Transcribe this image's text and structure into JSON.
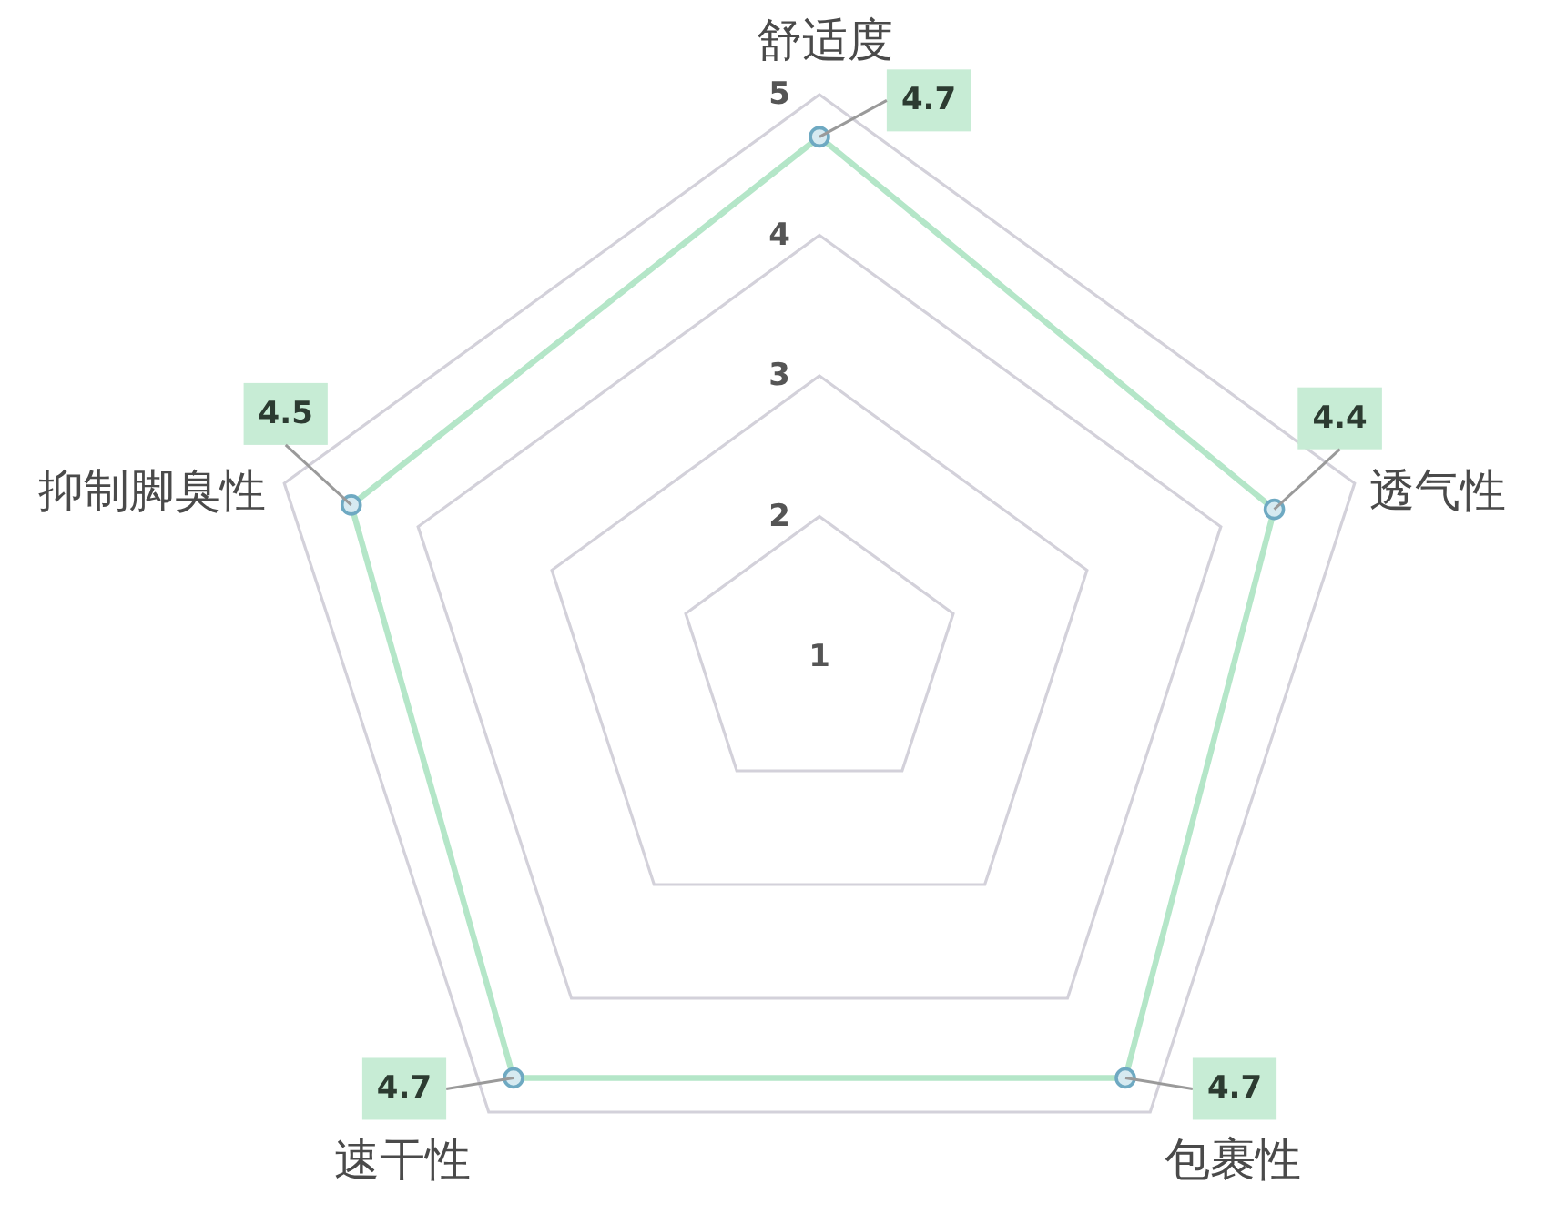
{
  "chart_data": {
    "type": "radar",
    "categories": [
      "舒适度",
      "透气性",
      "包裹性",
      "速干性",
      "抑制脚臭性"
    ],
    "series": [
      {
        "color": "#b4e6c8",
        "values": [
          4.7,
          4.4,
          4.7,
          4.7,
          4.5
        ]
      }
    ],
    "ylim": [
      1,
      5
    ],
    "yticks": [
      1,
      2,
      3,
      4,
      5
    ],
    "grid": true,
    "marker": "circle",
    "data_labels": true
  }
}
